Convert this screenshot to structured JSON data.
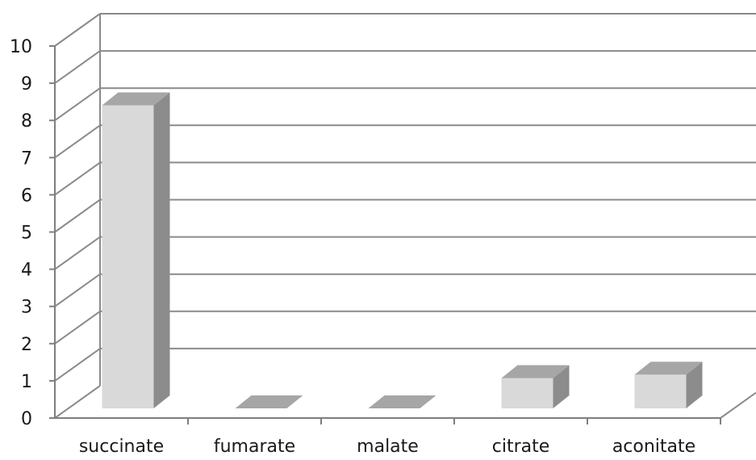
{
  "chart_data": {
    "type": "bar",
    "style": "3d-column",
    "categories": [
      "succinate",
      "fumarate",
      "malate",
      "citrate",
      "aconitate"
    ],
    "values": [
      9,
      0,
      0,
      0.9,
      1.0
    ],
    "title": "",
    "xlabel": "",
    "ylabel": "",
    "ylim": [
      0,
      10
    ],
    "yticks": [
      "0",
      "1",
      "2",
      "3",
      "4",
      "5",
      "6",
      "7",
      "8",
      "9",
      "10"
    ],
    "grid": true,
    "legend": "none",
    "colors": {
      "front": "#d9d9d9",
      "side": "#8c8c8c",
      "top": "#a6a6a6",
      "grid": "#8a8a8a",
      "axis": "#7f7f7f"
    }
  }
}
